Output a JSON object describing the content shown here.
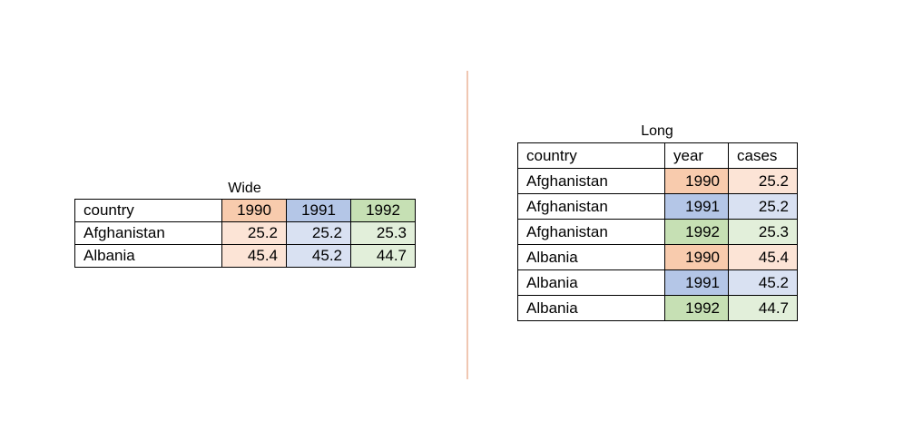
{
  "colors": {
    "1990_strong": "#f8cbad",
    "1990_light": "#fce4d6",
    "1991_strong": "#b4c6e7",
    "1991_light": "#d9e1f2",
    "1992_strong": "#c6e0b4",
    "1992_light": "#e2efda",
    "divider": "#f0c7b2"
  },
  "wide": {
    "title": "Wide",
    "header": [
      "country",
      "1990",
      "1991",
      "1992"
    ],
    "rows": [
      [
        "Afghanistan",
        "25.2",
        "25.2",
        "25.3"
      ],
      [
        "Albania",
        "45.4",
        "45.2",
        "44.7"
      ]
    ]
  },
  "long": {
    "title": "Long",
    "header": [
      "country",
      "year",
      "cases"
    ],
    "rows": [
      [
        "Afghanistan",
        "1990",
        "25.2"
      ],
      [
        "Afghanistan",
        "1991",
        "25.2"
      ],
      [
        "Afghanistan",
        "1992",
        "25.3"
      ],
      [
        "Albania",
        "1990",
        "45.4"
      ],
      [
        "Albania",
        "1991",
        "45.2"
      ],
      [
        "Albania",
        "1992",
        "44.7"
      ]
    ]
  }
}
